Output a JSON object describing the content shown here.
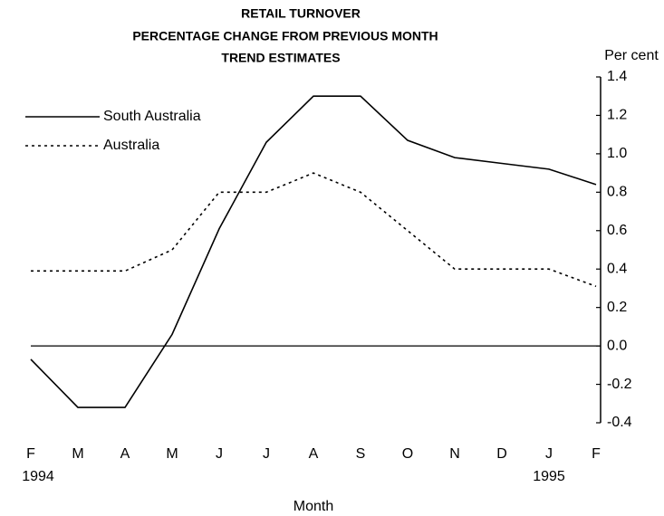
{
  "chart_data": {
    "type": "line",
    "title": [
      "RETAIL TURNOVER",
      "PERCENTAGE CHANGE FROM PREVIOUS MONTH",
      "TREND ESTIMATES"
    ],
    "y_label": "Per cent",
    "x_label": "Month",
    "categories": [
      "F",
      "M",
      "A",
      "M",
      "J",
      "J",
      "A",
      "S",
      "O",
      "N",
      "D",
      "J",
      "F"
    ],
    "x_sublabels": [
      "1994",
      null,
      null,
      null,
      null,
      null,
      null,
      null,
      null,
      null,
      null,
      "1995",
      null
    ],
    "series": [
      {
        "name": "South Australia",
        "color": "#000000",
        "dash": "solid",
        "values": [
          -0.07,
          -0.32,
          -0.32,
          0.06,
          0.61,
          1.06,
          1.3,
          1.3,
          1.07,
          0.98,
          0.95,
          0.92,
          0.84
        ]
      },
      {
        "name": "Australia",
        "color": "#000000",
        "dash": "dotted",
        "values": [
          0.39,
          0.39,
          0.39,
          0.5,
          0.8,
          0.8,
          0.9,
          0.8,
          0.6,
          0.4,
          0.4,
          0.4,
          0.31
        ]
      }
    ],
    "ylim": [
      -0.4,
      1.4
    ],
    "yticks": [
      1.4,
      1.2,
      {
        "value": 1,
        "label": "1.0"
      },
      0.8,
      0.6,
      0.4,
      0.2,
      {
        "value": 0,
        "label": "0.0"
      },
      -0.2,
      -0.4
    ],
    "legend": "upper left",
    "grid": false
  }
}
